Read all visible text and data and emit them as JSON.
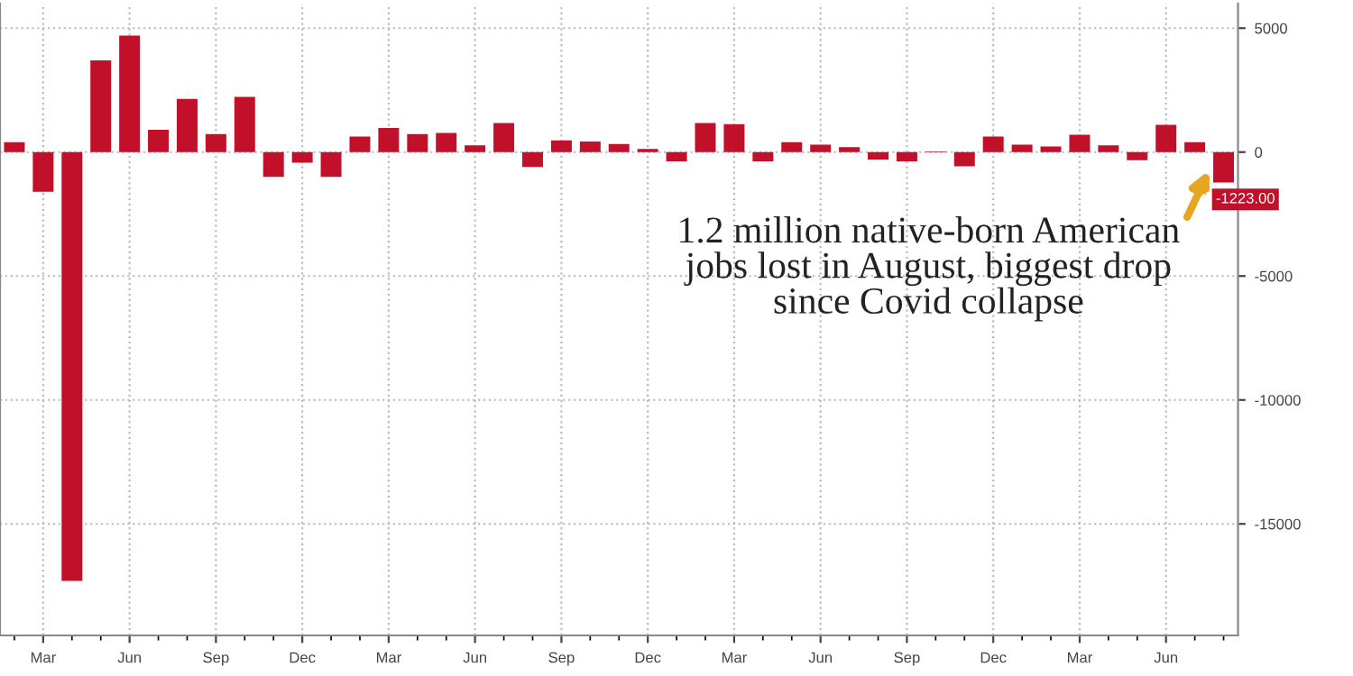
{
  "chart_data": {
    "type": "bar",
    "categories": [
      null,
      "Mar",
      null,
      null,
      "Jun",
      null,
      null,
      "Sep",
      null,
      null,
      "Dec",
      null,
      null,
      "Mar",
      null,
      null,
      "Jun",
      null,
      null,
      "Sep",
      null,
      null,
      "Dec",
      null,
      null,
      "Mar",
      null,
      null,
      "Jun",
      null,
      null,
      "Sep",
      null,
      null,
      "Dec",
      null,
      null,
      "Mar",
      null,
      null,
      "Jun",
      null,
      null
    ],
    "values": [
      400,
      -1600,
      -17300,
      3700,
      4700,
      900,
      2150,
      730,
      2230,
      -1000,
      -430,
      -1000,
      630,
      970,
      730,
      770,
      270,
      1170,
      -600,
      470,
      430,
      330,
      130,
      -370,
      1170,
      1130,
      -370,
      400,
      300,
      200,
      -300,
      -370,
      30,
      -570,
      630,
      300,
      230,
      700,
      270,
      -330,
      1100,
      400,
      -1223
    ],
    "value_labels": [
      null,
      null,
      null,
      null,
      null,
      null,
      null,
      null,
      null,
      null,
      null,
      null,
      null,
      null,
      null,
      null,
      null,
      null,
      null,
      null,
      null,
      null,
      null,
      null,
      null,
      null,
      null,
      null,
      null,
      null,
      null,
      null,
      null,
      null,
      null,
      null,
      null,
      null,
      null,
      null,
      null,
      null,
      "-1223.00"
    ],
    "color": "#c0102a",
    "ylim": [
      -19500,
      6000
    ],
    "yticks": [
      5000,
      0,
      -5000,
      -10000,
      -15000
    ],
    "grid": true,
    "annotations": [
      "1.2 million native-born American\njobs lost in August, biggest drop\nsince Covid collapse"
    ]
  }
}
